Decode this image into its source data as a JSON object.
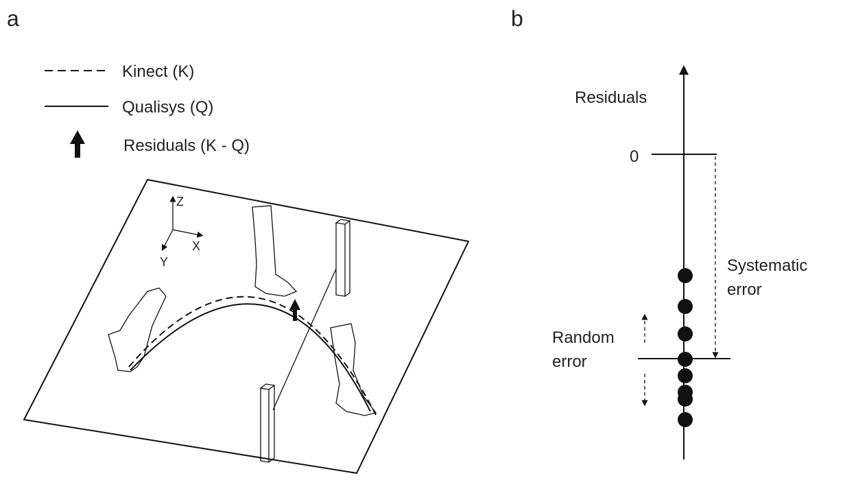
{
  "panel_a": {
    "label": "a",
    "legend": [
      {
        "label": "Kinect (K)"
      },
      {
        "label": "Qualisys (Q)"
      },
      {
        "label": "Residuals (K - Q)"
      }
    ],
    "axes": {
      "z": "Z",
      "x": "X",
      "y": "Y"
    }
  },
  "panel_b": {
    "label": "b",
    "axis_title": "Residuals",
    "zero_tick": "0",
    "systematic_error": [
      "Systematic",
      "error"
    ],
    "random_error": [
      "Random",
      "error"
    ]
  }
}
